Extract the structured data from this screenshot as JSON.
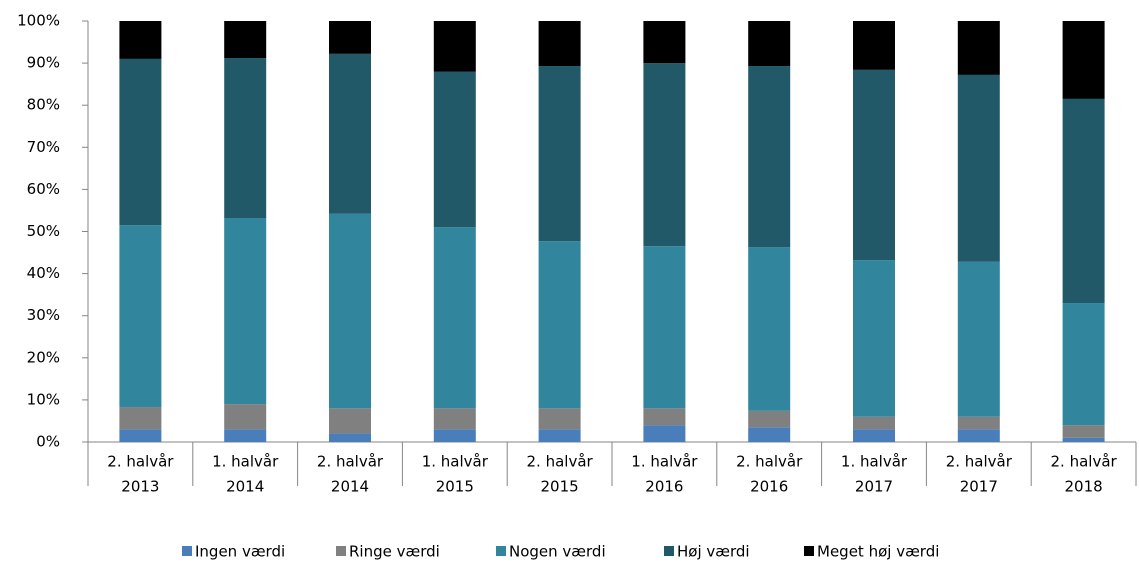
{
  "chart_data": {
    "type": "stacked_bar",
    "categories": [
      [
        "2. halvår",
        "2013"
      ],
      [
        "1. halvår",
        "2014"
      ],
      [
        "2. halvår",
        "2014"
      ],
      [
        "1. halvår",
        "2015"
      ],
      [
        "2. halvår",
        "2015"
      ],
      [
        "1. halvår",
        "2016"
      ],
      [
        "2. halvår",
        "2016"
      ],
      [
        "1. halvår",
        "2017"
      ],
      [
        "2. halvår",
        "2017"
      ],
      [
        "2. halvår",
        "2018"
      ]
    ],
    "series": [
      {
        "name": "Ingen værdi",
        "color": "#4a7ebb",
        "values": [
          3,
          3,
          2,
          3,
          3,
          4,
          3.5,
          3,
          3,
          1
        ]
      },
      {
        "name": "Ringe værdi",
        "color": "#808080",
        "values": [
          5.3,
          6,
          6,
          5,
          5,
          4,
          3.9,
          3,
          3,
          3
        ]
      },
      {
        "name": "Nogen værdi",
        "color": "#31859c",
        "values": [
          43.2,
          44.2,
          46.2,
          43,
          39.7,
          38.5,
          38.9,
          37.2,
          36.8,
          29
        ]
      },
      {
        "name": "Høj værdi",
        "color": "#215968",
        "values": [
          39.5,
          38,
          38,
          37,
          41.6,
          43.5,
          43,
          45.2,
          44.4,
          48.5
        ]
      },
      {
        "name": "Meget høj værdi",
        "color": "#000000",
        "values": [
          9,
          8.8,
          7.8,
          12,
          10.7,
          10,
          10.7,
          11.6,
          12.8,
          18.5
        ]
      }
    ],
    "ylim": [
      0,
      100
    ],
    "yticks": [
      {
        "value": 0,
        "label": "0%"
      },
      {
        "value": 10,
        "label": "10%"
      },
      {
        "value": 20,
        "label": "20%"
      },
      {
        "value": 30,
        "label": "30%"
      },
      {
        "value": 40,
        "label": "40%"
      },
      {
        "value": 50,
        "label": "50%"
      },
      {
        "value": 60,
        "label": "60%"
      },
      {
        "value": 70,
        "label": "70%"
      },
      {
        "value": 80,
        "label": "80%"
      },
      {
        "value": 90,
        "label": "90%"
      },
      {
        "value": 100,
        "label": "100%"
      }
    ],
    "legend": "bottom"
  }
}
